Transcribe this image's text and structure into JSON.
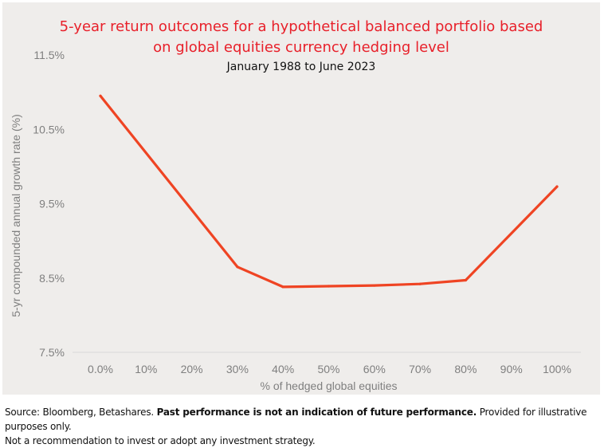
{
  "chart_data": {
    "type": "line",
    "title_lines": [
      "5-year return outcomes for a hypothetical balanced portfolio based",
      "on global equities currency hedging level"
    ],
    "subtitle": "January 1988 to June 2023",
    "xlabel": "% of hedged global equities",
    "ylabel": "5-yr compounded annual growth rate (%)",
    "categories": [
      "0.0%",
      "10%",
      "20%",
      "30%",
      "40%",
      "50%",
      "60%",
      "70%",
      "80%",
      "90%",
      "100%"
    ],
    "x": [
      0,
      30,
      40,
      50,
      60,
      70,
      80,
      100
    ],
    "values": [
      10.95,
      8.65,
      8.38,
      8.39,
      8.4,
      8.42,
      8.47,
      9.73
    ],
    "y_ticks": [
      {
        "value": 7.5,
        "label": "7.5%"
      },
      {
        "value": 8.5,
        "label": "8.5%"
      },
      {
        "value": 9.5,
        "label": "9.5%"
      },
      {
        "value": 10.5,
        "label": "10.5%"
      },
      {
        "value": 11.5,
        "label": "11.5%"
      }
    ],
    "ylim": [
      7.5,
      11.5
    ],
    "xlim": [
      0,
      100
    ],
    "grid": false,
    "legend": "none",
    "line_color": "#ef4423"
  },
  "footnote": {
    "source": "Source: Bloomberg, Betashares. ",
    "emphasis": "Past performance is not an indication of future performance.",
    "rest": " Provided for illustrative purposes only.",
    "line2": "Not a recommendation to invest or adopt any investment strategy."
  }
}
